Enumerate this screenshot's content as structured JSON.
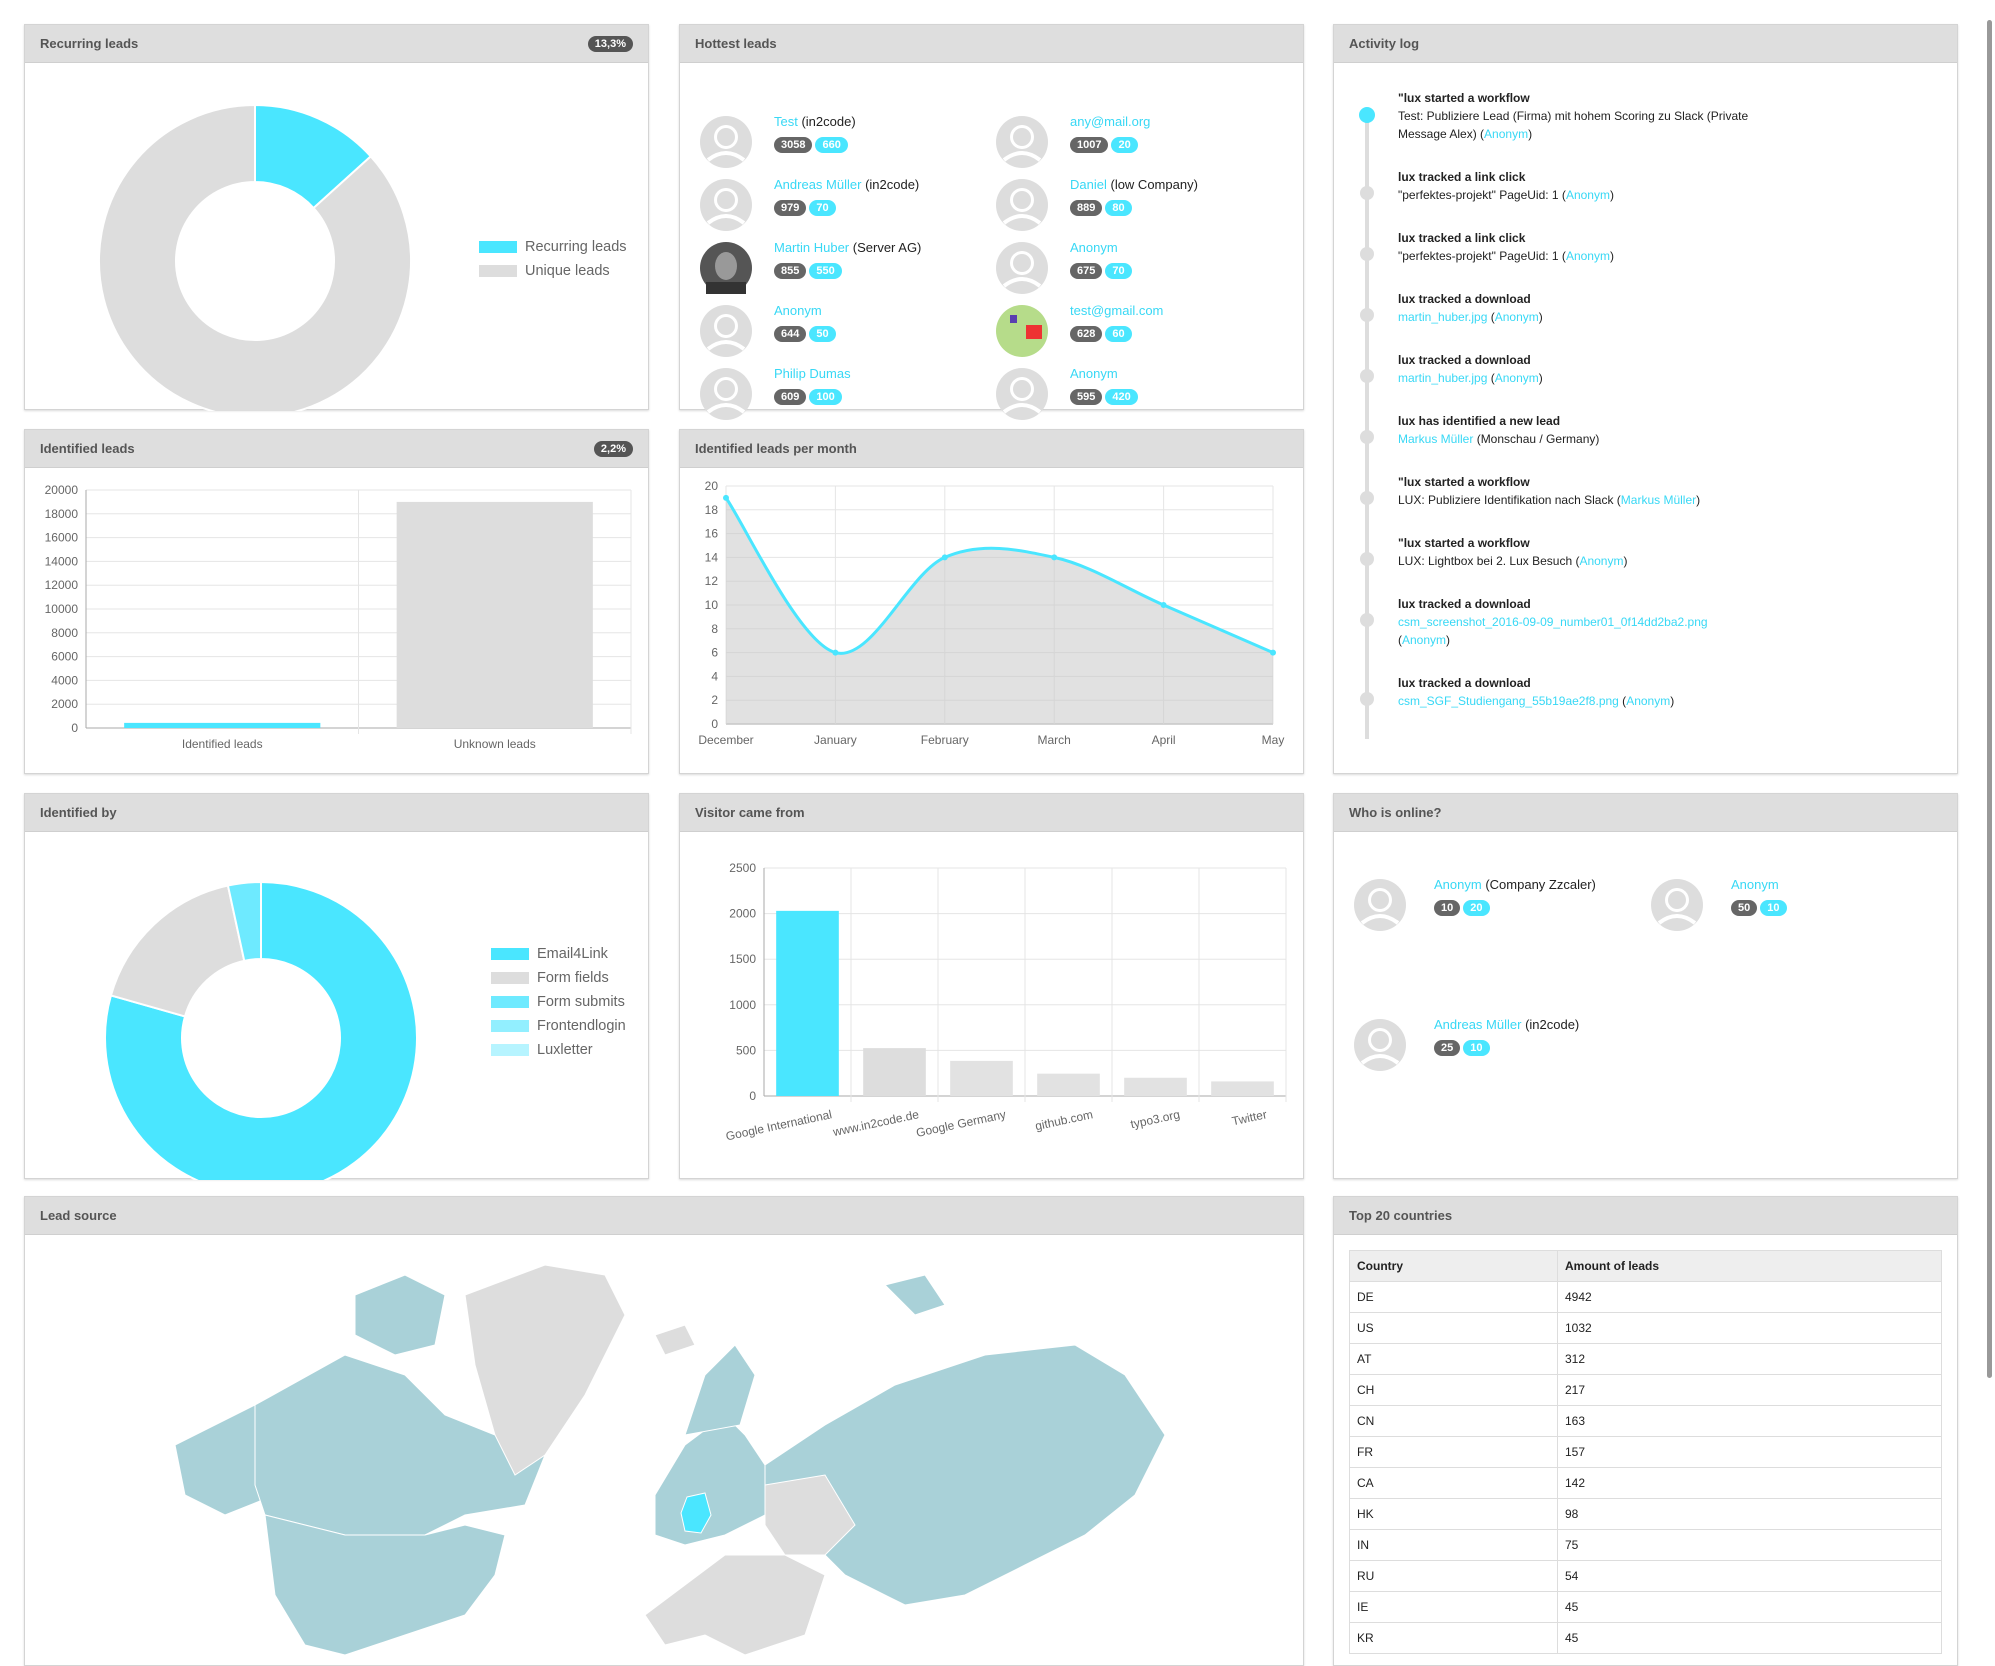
{
  "colors": {
    "accent": "#4ae6ff",
    "grey": "#dddddd",
    "badge_dark": "#555555"
  },
  "recurring": {
    "title": "Recurring leads",
    "badge": "13,3%",
    "chart_data": {
      "type": "pie",
      "donut": true,
      "labels": [
        "Recurring leads",
        "Unique leads"
      ],
      "values": [
        13.3,
        86.7
      ],
      "colors": [
        "#4ae6ff",
        "#dddddd"
      ],
      "legend": "right"
    }
  },
  "hottest": {
    "title": "Hottest leads",
    "leads": [
      {
        "name": "Test",
        "company": "(in2code)",
        "score": "3058",
        "cat": "660",
        "avatar": "placeholder"
      },
      {
        "name": "any@mail.org",
        "company": "",
        "score": "1007",
        "cat": "20",
        "avatar": "placeholder"
      },
      {
        "name": "Andreas Müller",
        "company": "(in2code)",
        "score": "979",
        "cat": "70",
        "avatar": "placeholder"
      },
      {
        "name": "Daniel",
        "company": "(low Company)",
        "score": "889",
        "cat": "80",
        "avatar": "placeholder"
      },
      {
        "name": "Martin Huber",
        "company": "(Server AG)",
        "score": "855",
        "cat": "550",
        "avatar": "photo"
      },
      {
        "name": "Anonym",
        "company": "",
        "score": "675",
        "cat": "70",
        "avatar": "placeholder"
      },
      {
        "name": "Anonym",
        "company": "",
        "score": "644",
        "cat": "50",
        "avatar": "placeholder"
      },
      {
        "name": "test@gmail.com",
        "company": "",
        "score": "628",
        "cat": "60",
        "avatar": "image"
      },
      {
        "name": "Philip Dumas",
        "company": "",
        "score": "609",
        "cat": "100",
        "avatar": "placeholder"
      },
      {
        "name": "Anonym",
        "company": "",
        "score": "595",
        "cat": "420",
        "avatar": "placeholder"
      }
    ]
  },
  "activity": {
    "title": "Activity log",
    "entries": [
      {
        "title": "\"lux started a workflow",
        "text": "Test: Publiziere Lead (Firma) mit hohem Scoring zu Slack (Private Message Alex) (",
        "link": "",
        "who": "Anonym",
        "end": ")"
      },
      {
        "title": "lux tracked a link click",
        "text": "\"perfektes-projekt\" PageUid: 1 (",
        "link": "",
        "who": "Anonym",
        "end": ")"
      },
      {
        "title": "lux tracked a link click",
        "text": "\"perfektes-projekt\" PageUid: 1 (",
        "link": "",
        "who": "Anonym",
        "end": ")"
      },
      {
        "title": "lux tracked a download",
        "text": "",
        "link": "martin_huber.jpg",
        "who": "Anonym",
        "end": ")"
      },
      {
        "title": "lux tracked a download",
        "text": "",
        "link": "martin_huber.jpg",
        "who": "Anonym",
        "end": ")"
      },
      {
        "title": "lux has identified a new lead",
        "text": "",
        "link": "Markus Müller",
        "who": "",
        "end": " (Monschau / Germany)"
      },
      {
        "title": "\"lux started a workflow",
        "text": "LUX: Publiziere Identifikation nach Slack (",
        "link": "",
        "who": "Markus Müller",
        "end": ")"
      },
      {
        "title": "\"lux started a workflow",
        "text": "LUX: Lightbox bei 2. Lux Besuch (",
        "link": "",
        "who": "Anonym",
        "end": ")"
      },
      {
        "title": "lux tracked a download",
        "text": "",
        "link": "csm_screenshot_2016-09-09_number01_0f14dd2ba2.png",
        "who": "Anonym",
        "end": ")"
      },
      {
        "title": "lux tracked a download",
        "text": "",
        "link": "csm_SGF_Studiengang_55b19ae2f8.png",
        "who": "Anonym",
        "end": ")"
      }
    ]
  },
  "identified": {
    "title": "Identified leads",
    "badge": "2,2%",
    "chart_data": {
      "type": "bar",
      "categories": [
        "Identified leads",
        "Unknown leads"
      ],
      "values": [
        430,
        19000
      ],
      "colors": [
        "#4ae6ff",
        "#dddddd"
      ],
      "ylim": [
        0,
        20000
      ],
      "yticks": [
        0,
        2000,
        4000,
        6000,
        8000,
        10000,
        12000,
        14000,
        16000,
        18000,
        20000
      ],
      "grid": true
    }
  },
  "permonth": {
    "title": "Identified leads per month",
    "chart_data": {
      "type": "area",
      "categories": [
        "December",
        "January",
        "February",
        "March",
        "April",
        "May"
      ],
      "values": [
        19,
        6,
        14,
        14,
        10,
        6
      ],
      "ylim": [
        0,
        20
      ],
      "yticks": [
        0,
        2,
        4,
        6,
        8,
        10,
        12,
        14,
        16,
        18,
        20
      ],
      "grid": true,
      "color": "#4ae6ff"
    }
  },
  "identifiedby": {
    "title": "Identified by",
    "chart_data": {
      "type": "pie",
      "donut": true,
      "labels": [
        "Email4Link",
        "Form fields",
        "Form submits",
        "Frontendlogin",
        "Luxletter"
      ],
      "values": [
        79.4,
        17.2,
        3.4,
        0,
        0
      ],
      "colors": [
        "#4ae6ff",
        "#dddddd",
        "#6eeaff",
        "#92efff",
        "#b6f4ff"
      ],
      "legend": "right"
    }
  },
  "visitor": {
    "title": "Visitor came from",
    "chart_data": {
      "type": "bar",
      "categories": [
        "Google International",
        "www.in2code.de",
        "Google Germany",
        "github.com",
        "typo3.org",
        "Twitter"
      ],
      "values": [
        2030,
        525,
        385,
        245,
        200,
        160
      ],
      "colors": [
        "#4ae6ff",
        "#dddddd",
        "#e2e2e2",
        "#e2e2e2",
        "#e2e2e2",
        "#e2e2e2"
      ],
      "ylim": [
        0,
        2500
      ],
      "yticks": [
        0,
        500,
        1000,
        1500,
        2000,
        2500
      ],
      "grid": true
    }
  },
  "online": {
    "title": "Who is online?",
    "leads": [
      {
        "name": "Anonym",
        "company": "(Company Zzcaler)",
        "score": "10",
        "cat": "20"
      },
      {
        "name": "Anonym",
        "company": "",
        "score": "50",
        "cat": "10"
      },
      {
        "name": "Andreas Müller",
        "company": "(in2code)",
        "score": "25",
        "cat": "10"
      }
    ]
  },
  "leadsource": {
    "title": "Lead source",
    "highlight_country": "DE"
  },
  "countries": {
    "title": "Top 20 countries",
    "headers": [
      "Country",
      "Amount of leads"
    ],
    "rows": [
      [
        "DE",
        "4942"
      ],
      [
        "US",
        "1032"
      ],
      [
        "AT",
        "312"
      ],
      [
        "CH",
        "217"
      ],
      [
        "CN",
        "163"
      ],
      [
        "FR",
        "157"
      ],
      [
        "CA",
        "142"
      ],
      [
        "HK",
        "98"
      ],
      [
        "IN",
        "75"
      ],
      [
        "RU",
        "54"
      ],
      [
        "IE",
        "45"
      ],
      [
        "KR",
        "45"
      ]
    ]
  }
}
